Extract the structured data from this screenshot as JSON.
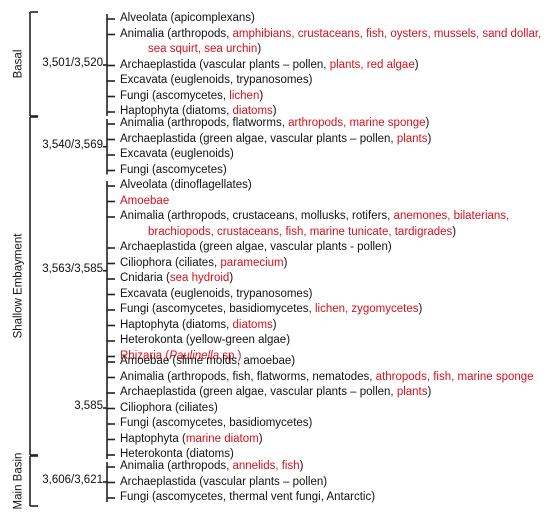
{
  "colors": {
    "text": "#111111",
    "highlight": "#d3111d",
    "line": "#222222"
  },
  "sections": [
    {
      "label": "Basal"
    },
    {
      "label": "Shallow Embayment"
    },
    {
      "label": "Main Basin"
    }
  ],
  "groups": [
    {
      "depth": "3,501/3,520",
      "lines": [
        [
          {
            "t": "Alveolata (apicomplexans)"
          }
        ],
        [
          {
            "t": "Animalia (arthropods, "
          },
          {
            "t": "amphibians, crustaceans, fish, oysters, mussels, sand dollar,",
            "red": true
          }
        ],
        [
          {
            "t": "sea squirt, sea urchin",
            "red": true
          },
          {
            "t": ")"
          }
        ],
        [
          {
            "t": "Archaeplastida (vascular plants – pollen, "
          },
          {
            "t": "plants, red algae",
            "red": true
          },
          {
            "t": ")"
          }
        ],
        [
          {
            "t": "Excavata (euglenoids, trypanosomes)"
          }
        ],
        [
          {
            "t": "Fungi (ascomycetes, "
          },
          {
            "t": "lichen",
            "red": true
          },
          {
            "t": ")"
          }
        ],
        [
          {
            "t": "Haptophyta (diatoms, "
          },
          {
            "t": "diatoms",
            "red": true
          },
          {
            "t": ")"
          }
        ]
      ]
    },
    {
      "depth": "3,540/3,569",
      "lines": [
        [
          {
            "t": "Animalia (arthropods, flatworms, "
          },
          {
            "t": "arthropods, marine sponge",
            "red": true
          },
          {
            "t": ")"
          }
        ],
        [
          {
            "t": "Archaeplastida (green algae, vascular plants – pollen, "
          },
          {
            "t": "plants",
            "red": true
          },
          {
            "t": ")"
          }
        ],
        [
          {
            "t": "Excavata (euglenoids)"
          }
        ],
        [
          {
            "t": "Fungi (ascomycetes)"
          }
        ]
      ]
    },
    {
      "depth": "3,563/3,585",
      "lines": [
        [
          {
            "t": "Alveolata (dinoflagellates)"
          }
        ],
        [
          {
            "t": "Amoebae",
            "red": true
          }
        ],
        [
          {
            "t": "Animalia (arthropods, crustaceans, mollusks, rotifers, "
          },
          {
            "t": "anemones, bilaterians,",
            "red": true
          }
        ],
        [
          {
            "t": "brachiopods, crustaceans, fish, marine tunicate, tardigrades",
            "red": true
          },
          {
            "t": ")"
          }
        ],
        [
          {
            "t": "Archaeplastida (green algae, vascular plants - pollen)"
          }
        ],
        [
          {
            "t": "Ciliophora (ciliates, "
          },
          {
            "t": "paramecium",
            "red": true
          },
          {
            "t": ")"
          }
        ],
        [
          {
            "t": "Cnidaria ("
          },
          {
            "t": "sea hydroid",
            "red": true
          },
          {
            "t": ")"
          }
        ],
        [
          {
            "t": "Excavata (euglenoids, trypanosomes)"
          }
        ],
        [
          {
            "t": "Fungi (ascomycetes, basidiomycetes, "
          },
          {
            "t": "lichen, zygomycetes",
            "red": true
          },
          {
            "t": ")"
          }
        ],
        [
          {
            "t": "Haptophyta (diatoms, "
          },
          {
            "t": "diatoms",
            "red": true
          },
          {
            "t": ")"
          }
        ],
        [
          {
            "t": "Heterokonta (yellow-green algae)"
          }
        ],
        [
          {
            "t": "Rhizaria (",
            "red": true
          },
          {
            "t": "Paulinella",
            "red": true,
            "italic": true
          },
          {
            "t": " sp.)",
            "red": true
          }
        ]
      ]
    },
    {
      "depth": "3,585",
      "lines": [
        [
          {
            "t": "Amoebae (slime molds, amoebae)"
          }
        ],
        [
          {
            "t": "Animalia (arthropods, fish, flatworms, nematodes, "
          },
          {
            "t": "athropods, fish, marine sponge",
            "red": true
          }
        ],
        [
          {
            "t": "Archaeplastida (green algae, vascular plants – pollen, "
          },
          {
            "t": "plants",
            "red": true
          },
          {
            "t": ")"
          }
        ],
        [
          {
            "t": "Ciliophora (ciliates)"
          }
        ],
        [
          {
            "t": "Fungi (ascomycetes, basidiomycetes)"
          }
        ],
        [
          {
            "t": "Haptophyta ("
          },
          {
            "t": "marine diatom",
            "red": true
          },
          {
            "t": ")"
          }
        ],
        [
          {
            "t": "Heterokonta (diatoms)"
          }
        ]
      ]
    },
    {
      "depth": "3,606/3,621",
      "lines": [
        [
          {
            "t": "Animalia (arthropods, "
          },
          {
            "t": "annelids, fish",
            "red": true
          },
          {
            "t": ")"
          }
        ],
        [
          {
            "t": "Archaeplastida (vascular plants – pollen)"
          }
        ],
        [
          {
            "t": "Fungi (ascomycetes, thermal vent fungi, Antarctic)"
          }
        ]
      ]
    }
  ]
}
